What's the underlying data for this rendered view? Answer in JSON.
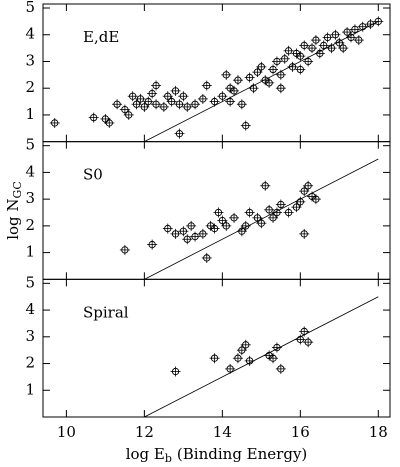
{
  "chart_data": [
    {
      "type": "scatter",
      "label": "E,dE",
      "xlim": [
        9.4,
        18.3
      ],
      "ylim": [
        0,
        5.15
      ],
      "xticks": [
        10,
        12,
        14,
        16,
        18
      ],
      "yticks": [
        1,
        2,
        3,
        4,
        5
      ],
      "color": "#000000",
      "fit": {
        "x": [
          12,
          18
        ],
        "y": [
          0,
          4.5
        ]
      },
      "x": [
        9.7,
        10.7,
        11.0,
        11.1,
        11.3,
        11.5,
        11.6,
        11.7,
        11.8,
        11.9,
        12.0,
        12.1,
        12.2,
        12.3,
        12.3,
        12.5,
        12.6,
        12.7,
        12.8,
        12.9,
        13.0,
        12.9,
        13.1,
        13.3,
        13.5,
        13.8,
        14.0,
        14.1,
        14.2,
        14.3,
        14.4,
        14.5,
        14.6,
        14.7,
        14.8,
        14.9,
        15.0,
        15.1,
        15.2,
        15.3,
        15.4,
        15.5,
        15.6,
        15.7,
        15.8,
        15.9,
        16.0,
        16.1,
        16.2,
        16.3,
        16.4,
        16.5,
        16.6,
        16.7,
        16.8,
        16.9,
        17.0,
        17.1,
        17.2,
        17.3,
        17.4,
        17.5,
        17.6,
        17.8,
        18.0,
        16.0,
        15.5,
        14.2,
        13.6
      ],
      "y": [
        0.7,
        0.9,
        0.85,
        0.7,
        1.4,
        1.2,
        1.0,
        1.7,
        1.4,
        1.6,
        1.3,
        1.5,
        1.8,
        2.1,
        1.4,
        1.3,
        1.7,
        1.5,
        1.9,
        1.4,
        1.7,
        0.3,
        1.3,
        1.4,
        1.6,
        1.5,
        1.7,
        2.5,
        2.0,
        1.9,
        2.3,
        1.4,
        0.6,
        2.4,
        2.0,
        2.6,
        2.8,
        2.3,
        2.2,
        2.7,
        3.0,
        2.5,
        3.1,
        3.4,
        2.8,
        3.3,
        3.2,
        3.6,
        3.0,
        3.5,
        3.8,
        3.3,
        3.6,
        3.9,
        3.5,
        4.0,
        3.7,
        3.5,
        4.1,
        3.9,
        4.2,
        3.8,
        4.3,
        4.4,
        4.5,
        2.7,
        2.0,
        1.5,
        2.1
      ]
    },
    {
      "type": "scatter",
      "label": "S0",
      "xlim": [
        9.4,
        18.3
      ],
      "ylim": [
        0,
        5.15
      ],
      "xticks": [
        10,
        12,
        14,
        16,
        18
      ],
      "yticks": [
        1,
        2,
        3,
        4,
        5
      ],
      "color": "#000000",
      "fit": {
        "x": [
          12,
          18
        ],
        "y": [
          0,
          4.5
        ]
      },
      "ylabel": {
        "main": "log N",
        "sub": "GC"
      },
      "x": [
        11.5,
        12.2,
        12.6,
        12.8,
        13.0,
        13.1,
        13.2,
        13.3,
        13.5,
        13.6,
        13.7,
        13.8,
        14.0,
        14.1,
        14.3,
        14.5,
        14.6,
        14.7,
        14.9,
        15.0,
        15.1,
        15.2,
        15.3,
        15.5,
        15.7,
        15.9,
        16.0,
        16.1,
        16.2,
        16.3,
        16.4,
        16.1,
        15.4,
        13.9
      ],
      "y": [
        1.1,
        1.3,
        1.9,
        1.7,
        1.8,
        1.5,
        2.0,
        1.6,
        1.7,
        0.8,
        2.0,
        1.9,
        2.2,
        2.0,
        2.3,
        1.8,
        2.0,
        2.5,
        2.3,
        2.1,
        3.5,
        2.6,
        2.3,
        2.8,
        2.5,
        2.7,
        2.9,
        3.3,
        3.5,
        3.1,
        3.0,
        1.7,
        2.5,
        2.5
      ]
    },
    {
      "type": "scatter",
      "label": "Spiral",
      "xlim": [
        9.4,
        18.3
      ],
      "ylim": [
        0,
        5.15
      ],
      "xticks": [
        10,
        12,
        14,
        16,
        18
      ],
      "yticks": [
        1,
        2,
        3,
        4,
        5
      ],
      "color": "#000000",
      "fit": {
        "x": [
          12,
          18
        ],
        "y": [
          0,
          4.5
        ]
      },
      "xlabel": {
        "main": "log E",
        "sub": "b",
        "rest": "(Binding Energy)"
      },
      "x": [
        12.8,
        13.8,
        14.2,
        14.4,
        14.5,
        14.6,
        14.7,
        15.2,
        15.3,
        15.5,
        15.4,
        16.0,
        16.1,
        16.2
      ],
      "y": [
        1.7,
        2.2,
        1.8,
        2.2,
        2.5,
        2.7,
        2.1,
        2.3,
        2.2,
        1.8,
        2.6,
        2.9,
        3.2,
        2.8
      ]
    }
  ]
}
